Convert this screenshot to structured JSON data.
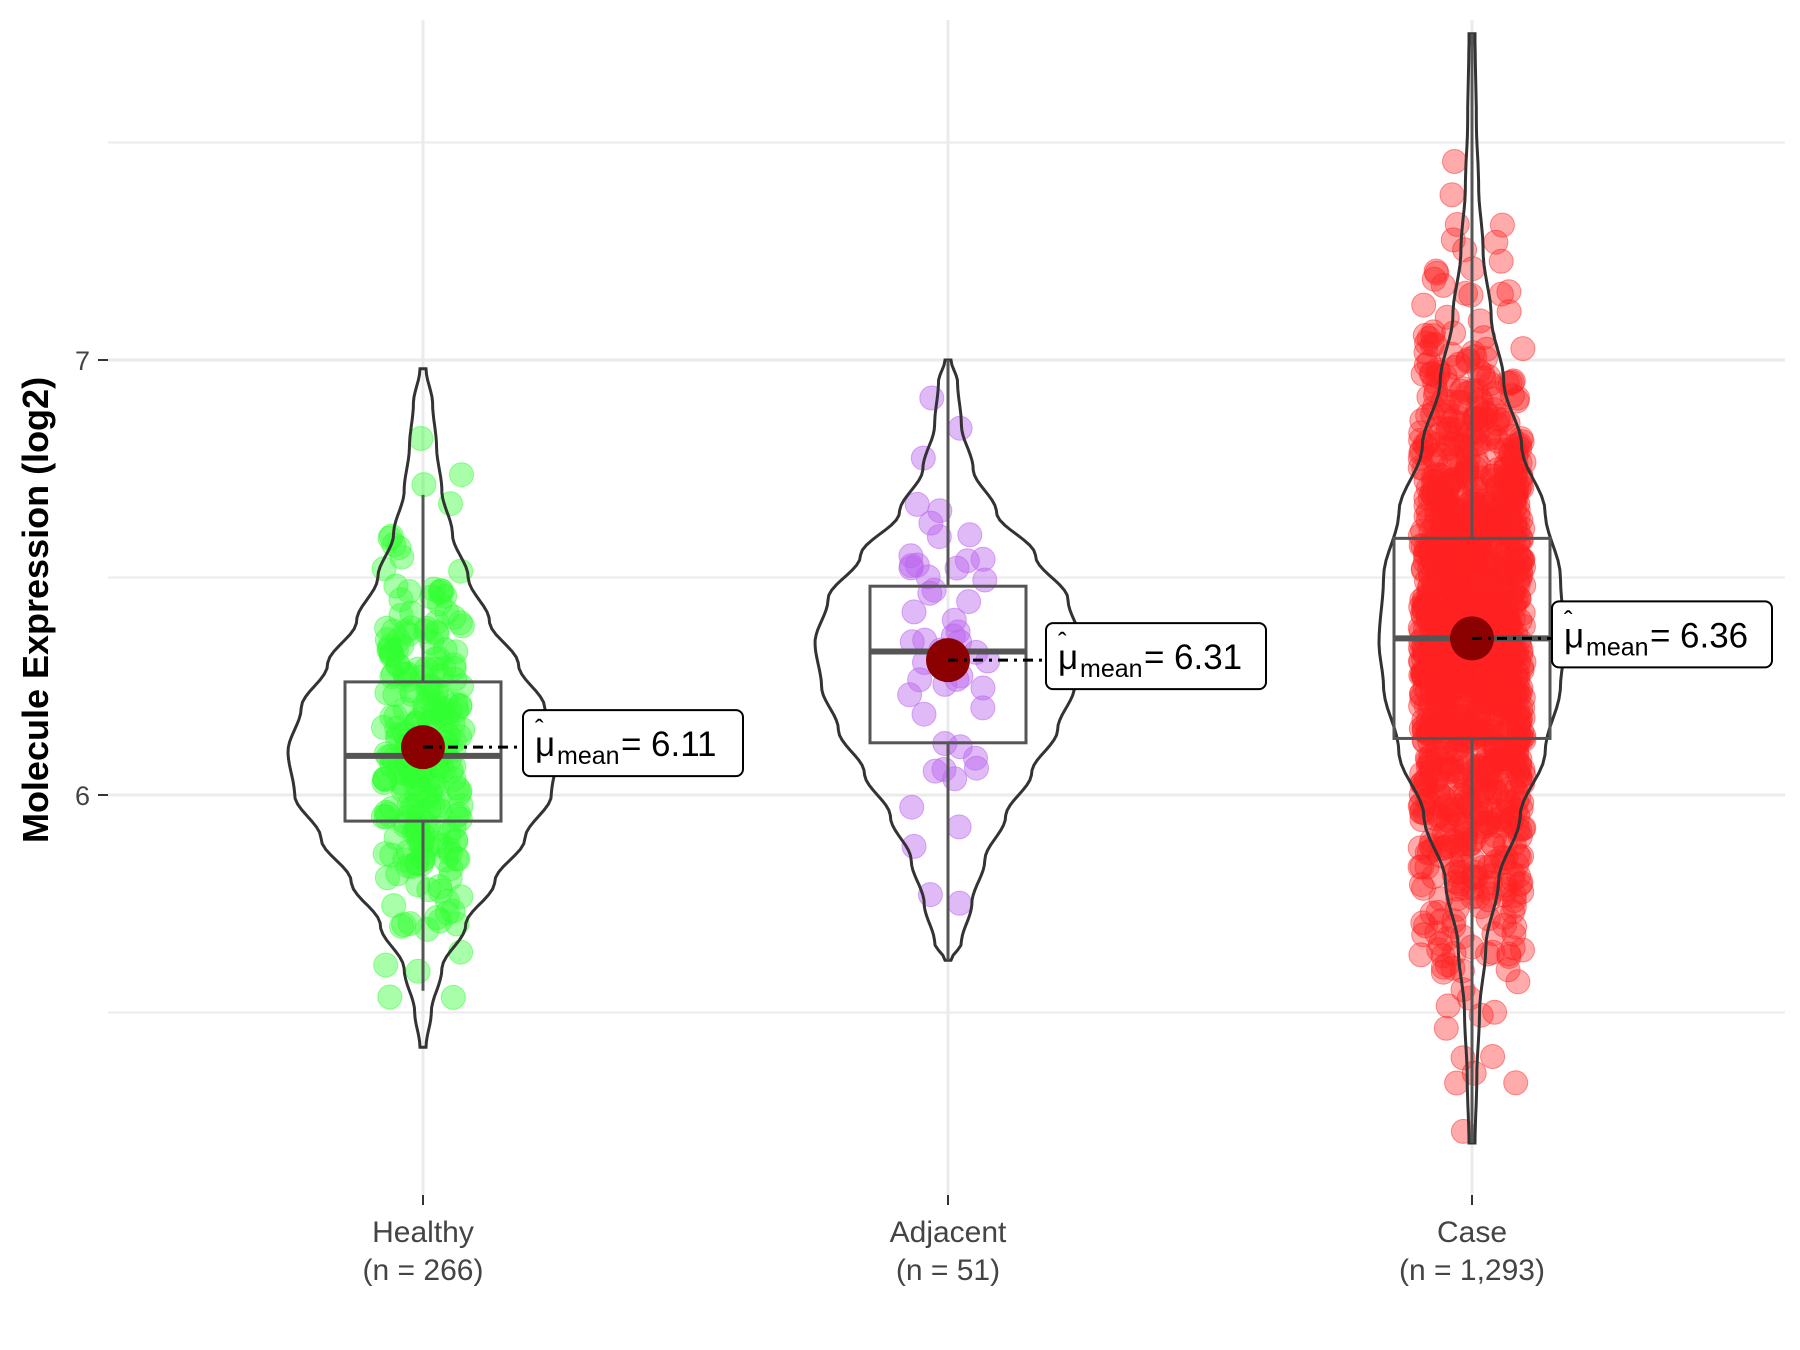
{
  "chart_data": {
    "type": "violin",
    "title": "",
    "xlabel": "",
    "ylabel": "Molecule Expression (log2)",
    "ylim": [
      5.1,
      7.8
    ],
    "yticks": [
      6,
      7
    ],
    "grid": true,
    "colors": {
      "Healthy": "#33ff33",
      "Adjacent": "#bb66ee",
      "Case": "#ff2222",
      "mean_point": "#8b0000"
    },
    "groups": [
      {
        "name": "Healthy",
        "n_label": "(n = 266)",
        "n": 266,
        "mean": 6.11,
        "mean_label": "6.11",
        "box": {
          "lower_whisker": 5.55,
          "q1": 5.94,
          "median": 6.09,
          "q3": 6.26,
          "upper_whisker": 6.69
        },
        "violin_range": [
          5.42,
          6.98
        ]
      },
      {
        "name": "Adjacent",
        "n_label": "(n = 51)",
        "n": 51,
        "mean": 6.31,
        "mean_label": "6.31",
        "box": {
          "lower_whisker": 5.62,
          "q1": 6.12,
          "median": 6.33,
          "q3": 6.48,
          "upper_whisker": 7.0
        },
        "violin_range": [
          5.62,
          7.0
        ]
      },
      {
        "name": "Case",
        "n_label": "(n = 1,293)",
        "n": 1293,
        "mean": 6.36,
        "mean_label": "6.36",
        "box": {
          "lower_whisker": 5.2,
          "q1": 6.13,
          "median": 6.36,
          "q3": 6.59,
          "upper_whisker": 7.75
        },
        "violin_range": [
          5.2,
          7.75
        ]
      }
    ]
  }
}
